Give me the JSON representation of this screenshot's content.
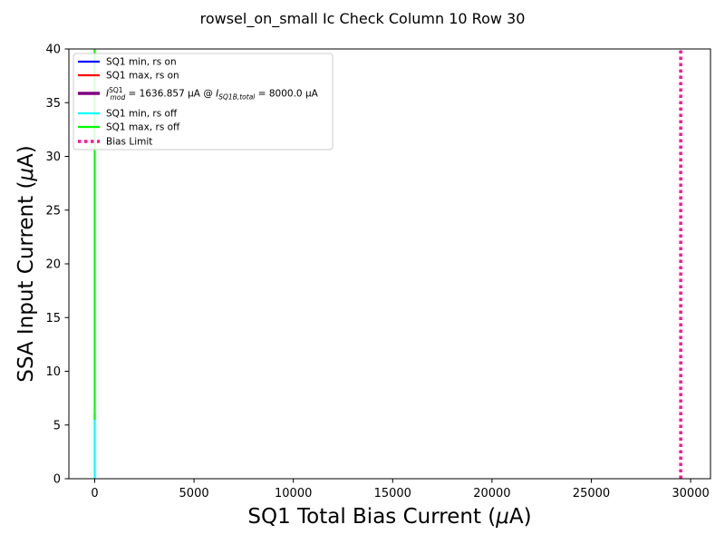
{
  "figure": {
    "title": "rowsel_on_small Ic Check Column 10 Row 30"
  },
  "chart_data": {
    "type": "line",
    "title": "rowsel_on_small Ic Check Column 10 Row 30",
    "xlabel": "SQ1 Total Bias Current (μA)",
    "ylabel": "SSA Input Current (μA)",
    "xlim": [
      -1300,
      31000
    ],
    "ylim": [
      0,
      40
    ],
    "xticks": [
      0,
      5000,
      10000,
      15000,
      20000,
      25000,
      30000
    ],
    "xtick_labels": [
      "0",
      "5000",
      "10000",
      "15000",
      "20000",
      "25000",
      "30000"
    ],
    "yticks": [
      0,
      5,
      10,
      15,
      20,
      25,
      30,
      35,
      40
    ],
    "ytick_labels": [
      "0",
      "5",
      "10",
      "15",
      "20",
      "25",
      "30",
      "35",
      "40"
    ],
    "grid": false,
    "legend_position": "top-left",
    "series": [
      {
        "name": "SQ1 min, rs on",
        "color": "#0000ff",
        "style": "solid",
        "x": [],
        "y": []
      },
      {
        "name": "SQ1 max, rs on",
        "color": "#ff0000",
        "style": "solid",
        "x": [],
        "y": []
      },
      {
        "name": "I_mod^SQ1 = 1636.857 μA @ I_SQ1B,total = 8000.0 μA",
        "color": "#800080",
        "style": "solid",
        "x": [],
        "y": []
      },
      {
        "name": "SQ1 min, rs off",
        "color": "#00ffff",
        "style": "solid",
        "x": [
          0,
          0,
          0,
          0,
          0,
          0
        ],
        "y": [
          0,
          1.5,
          3,
          4.5,
          5.5,
          6
        ]
      },
      {
        "name": "SQ1 max, rs off",
        "color": "#00ff00",
        "style": "solid",
        "x": [
          0,
          0,
          0,
          0,
          0,
          0,
          0,
          0,
          0,
          0
        ],
        "y": [
          5.5,
          10,
          15,
          20,
          24.5,
          27,
          30,
          33,
          36,
          40
        ]
      },
      {
        "name": "Bias Limit",
        "color": "#ff1493",
        "style": "dotted",
        "x": [
          29500,
          29500
        ],
        "y": [
          0,
          40
        ]
      }
    ]
  },
  "legend": {
    "items": [
      {
        "color": "#0000ff",
        "style": "solid",
        "text": "SQ1 min, rs on"
      },
      {
        "color": "#ff0000",
        "style": "solid",
        "text": "SQ1 max, rs on"
      },
      {
        "color": "#800080",
        "style": "solid-thick",
        "parts": {
          "i1": "I",
          "s1sup": "SQ1",
          "s1sub": "mod",
          "mid": " = 1636.857 μA @ ",
          "i2": "I",
          "s2sub": "SQ1B,total",
          "end": " = 8000.0 μA"
        }
      },
      {
        "color": "#00ffff",
        "style": "solid",
        "text": "SQ1 min, rs off"
      },
      {
        "color": "#00ff00",
        "style": "solid",
        "text": "SQ1 max, rs off"
      },
      {
        "color": "#ff1493",
        "style": "dotted",
        "text": "Bias Limit"
      }
    ]
  }
}
